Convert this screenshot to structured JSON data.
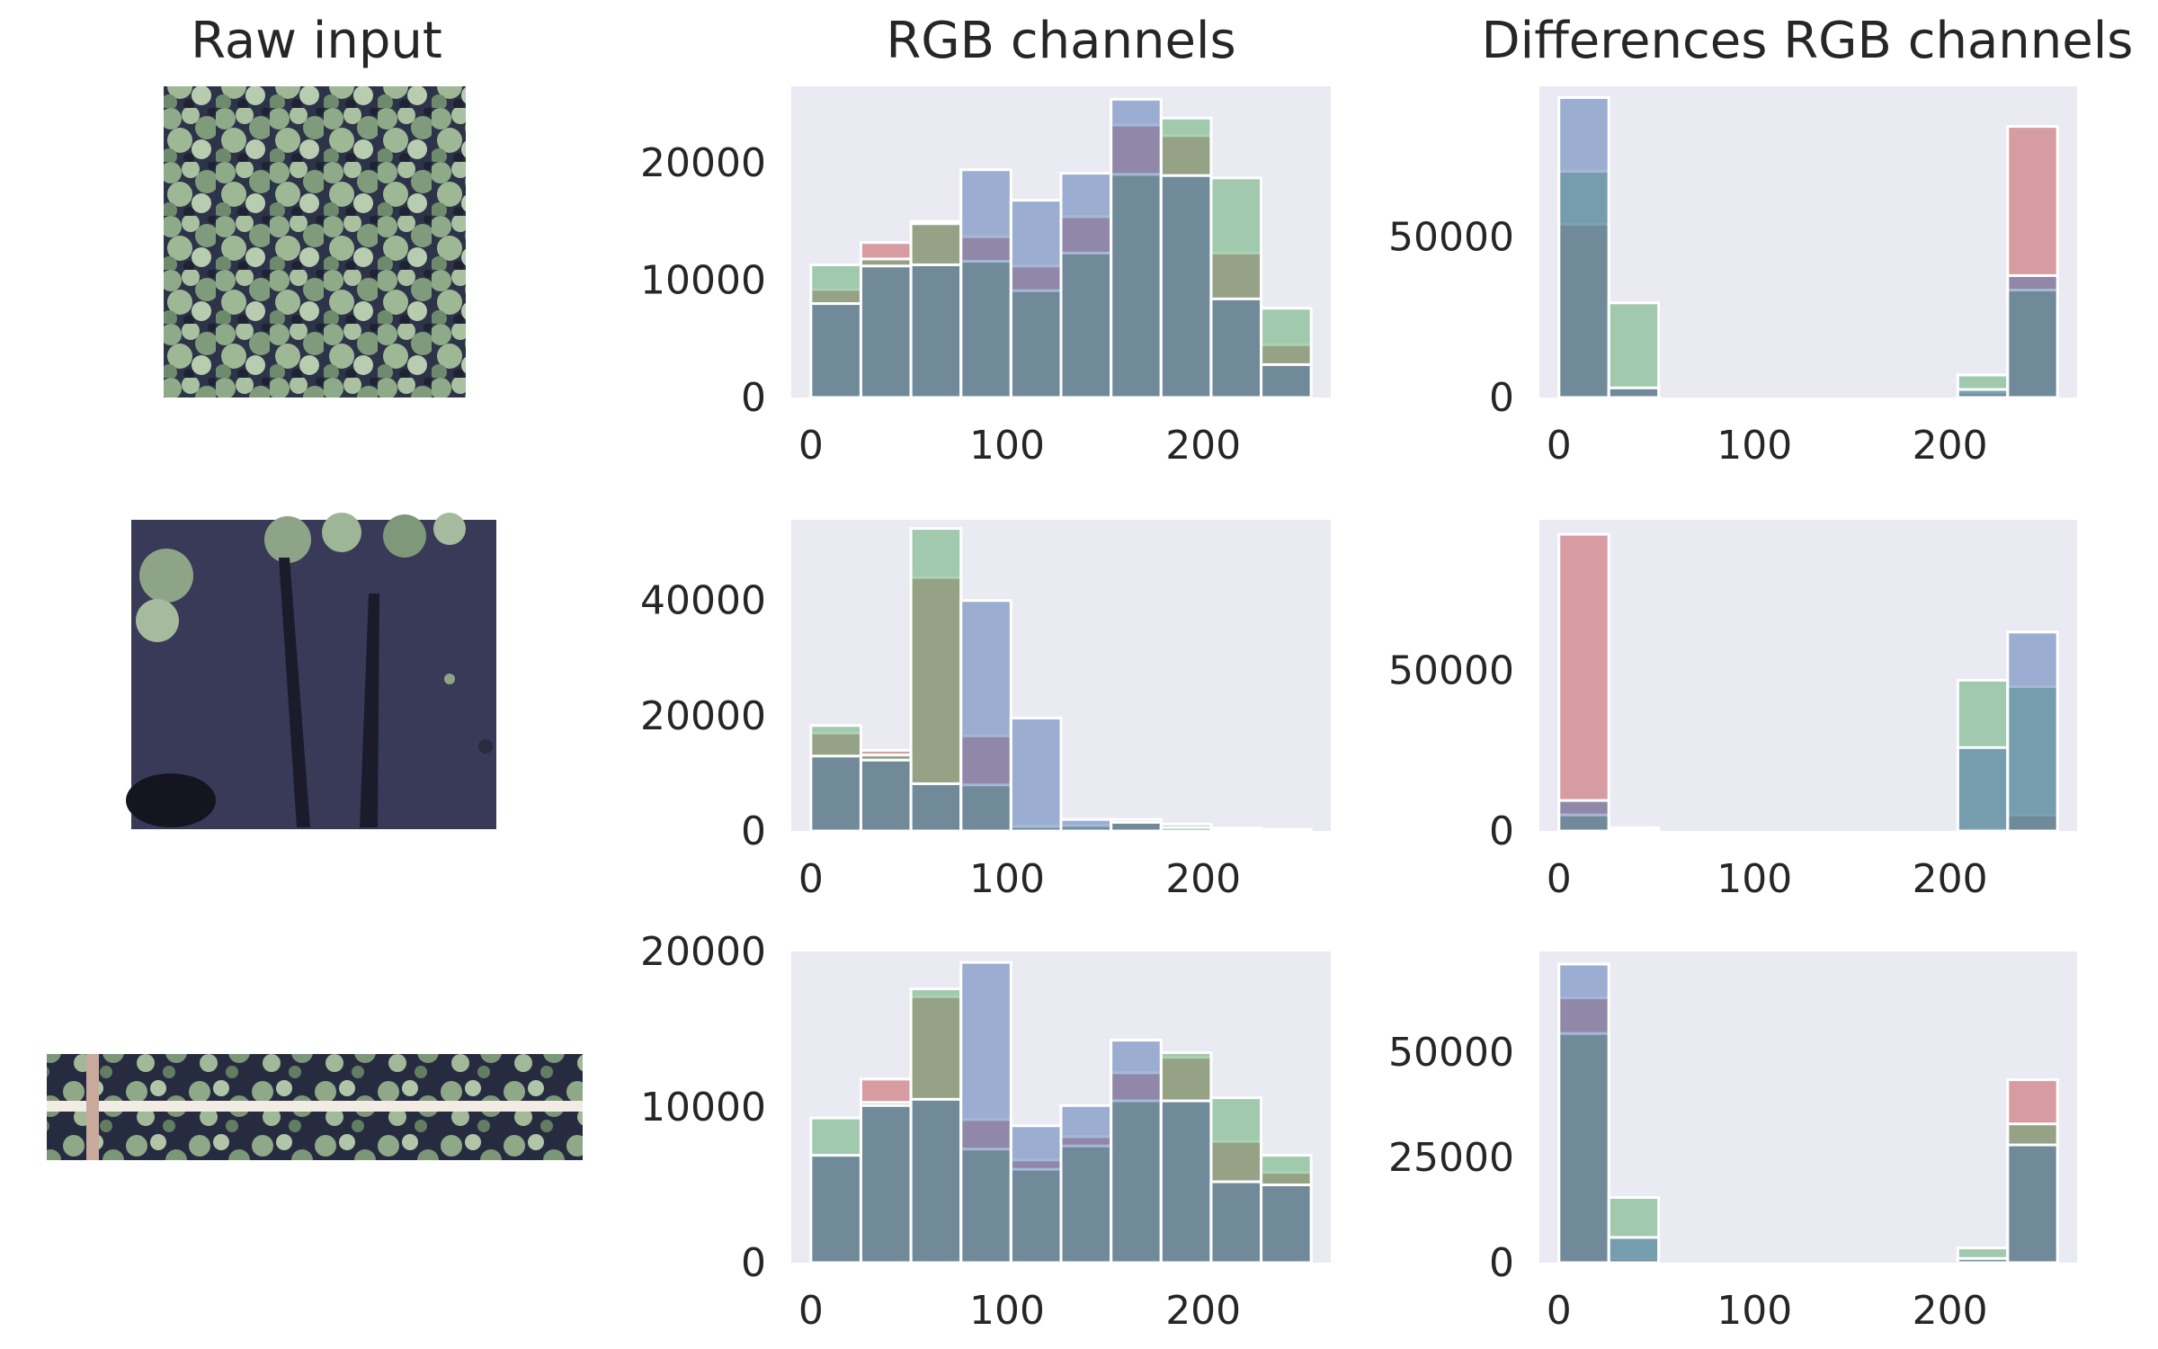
{
  "column_titles": {
    "raw": "Raw input",
    "rgb": "RGB channels",
    "diff": "Differences RGB channels"
  },
  "colors": {
    "red": "#c44e52",
    "green": "#55a868",
    "blue": "#4c72b0",
    "axes_bg": "#eaeaf2"
  },
  "images": [
    {
      "name": "raw-input-image-1",
      "scene": "dense-foliage"
    },
    {
      "name": "raw-input-image-2",
      "scene": "dark-water"
    },
    {
      "name": "raw-input-image-3",
      "scene": "foliage-strip-with-stick"
    }
  ],
  "chart_data": [
    {
      "type": "bar",
      "panel": "rgb-row1",
      "title": "RGB channels",
      "bin_edges": [
        0,
        25.5,
        51,
        76.5,
        102,
        127.5,
        153,
        178.5,
        204,
        229.5,
        255
      ],
      "xlim": [
        -10,
        265
      ],
      "ylim": [
        0,
        26500
      ],
      "xticks": [
        0,
        100,
        200
      ],
      "xtick_labels": [
        "0",
        "100",
        "200"
      ],
      "yticks": [
        0,
        10000,
        20000
      ],
      "ytick_labels": [
        "0",
        "10000",
        "20000"
      ],
      "series": [
        {
          "name": "R",
          "values": [
            9200,
            13200,
            15000,
            13700,
            11200,
            15400,
            23200,
            22300,
            12300,
            4500
          ]
        },
        {
          "name": "G",
          "values": [
            11300,
            11800,
            14800,
            11600,
            9100,
            12300,
            19000,
            23800,
            18700,
            7600
          ]
        },
        {
          "name": "B",
          "values": [
            8000,
            11200,
            11300,
            19400,
            16800,
            19100,
            25400,
            18900,
            8400,
            2800
          ]
        }
      ]
    },
    {
      "type": "bar",
      "panel": "diff-row1",
      "title": "Differences RGB channels",
      "bin_edges": [
        0,
        25.5,
        51,
        76.5,
        102,
        127.5,
        153,
        178.5,
        204,
        229.5,
        255
      ],
      "xlim": [
        -10,
        265
      ],
      "ylim": [
        0,
        97000
      ],
      "xticks": [
        0,
        100,
        200
      ],
      "xtick_labels": [
        "0",
        "100",
        "200"
      ],
      "yticks": [
        0,
        50000
      ],
      "ytick_labels": [
        "0",
        "50000"
      ],
      "series": [
        {
          "name": "R",
          "values": [
            54000,
            3000,
            0,
            0,
            0,
            0,
            0,
            0,
            1500,
            84500
          ]
        },
        {
          "name": "G",
          "values": [
            70500,
            29500,
            0,
            0,
            0,
            0,
            0,
            0,
            7000,
            33500
          ]
        },
        {
          "name": "B",
          "values": [
            93500,
            3000,
            0,
            0,
            0,
            0,
            0,
            0,
            2500,
            38000
          ]
        }
      ]
    },
    {
      "type": "bar",
      "panel": "rgb-row2",
      "title": "RGB channels",
      "bin_edges": [
        0,
        25.5,
        51,
        76.5,
        102,
        127.5,
        153,
        178.5,
        204,
        229.5,
        255
      ],
      "xlim": [
        -10,
        265
      ],
      "ylim": [
        0,
        54000
      ],
      "xticks": [
        0,
        100,
        200
      ],
      "xtick_labels": [
        "0",
        "100",
        "200"
      ],
      "yticks": [
        0,
        20000,
        40000
      ],
      "ytick_labels": [
        "0",
        "20000",
        "40000"
      ],
      "series": [
        {
          "name": "R",
          "values": [
            17000,
            14000,
            44000,
            16500,
            700,
            800,
            1800,
            200,
            0,
            0
          ]
        },
        {
          "name": "G",
          "values": [
            18300,
            13200,
            52500,
            8000,
            800,
            1000,
            2000,
            1200,
            500,
            300
          ]
        },
        {
          "name": "B",
          "values": [
            13000,
            12300,
            8200,
            40000,
            19600,
            2000,
            1500,
            600,
            200,
            100
          ]
        }
      ]
    },
    {
      "type": "bar",
      "panel": "diff-row2",
      "title": "Differences RGB channels",
      "bin_edges": [
        0,
        25.5,
        51,
        76.5,
        102,
        127.5,
        153,
        178.5,
        204,
        229.5,
        255
      ],
      "xlim": [
        -10,
        265
      ],
      "ylim": [
        0,
        97000
      ],
      "xticks": [
        0,
        100,
        200
      ],
      "xtick_labels": [
        "0",
        "100",
        "200"
      ],
      "yticks": [
        0,
        50000
      ],
      "ytick_labels": [
        "0",
        "50000"
      ],
      "series": [
        {
          "name": "R",
          "values": [
            92500,
            500,
            0,
            0,
            0,
            0,
            0,
            0,
            700,
            5000
          ]
        },
        {
          "name": "G",
          "values": [
            5000,
            1000,
            0,
            0,
            0,
            0,
            0,
            0,
            47000,
            45000
          ]
        },
        {
          "name": "B",
          "values": [
            9500,
            500,
            0,
            0,
            0,
            0,
            0,
            0,
            26000,
            62000
          ]
        }
      ]
    },
    {
      "type": "bar",
      "panel": "rgb-row3",
      "title": "RGB channels",
      "bin_edges": [
        0,
        25.5,
        51,
        76.5,
        102,
        127.5,
        153,
        178.5,
        204,
        229.5,
        255
      ],
      "xlim": [
        -10,
        265
      ],
      "ylim": [
        0,
        20000
      ],
      "xticks": [
        0,
        100,
        200
      ],
      "xtick_labels": [
        "0",
        "100",
        "200"
      ],
      "yticks": [
        0,
        10000,
        20000
      ],
      "ytick_labels": [
        "0",
        "10000",
        "20000"
      ],
      "series": [
        {
          "name": "R",
          "values": [
            6900,
            11800,
            17100,
            9200,
            6600,
            8100,
            12200,
            13200,
            7800,
            5800
          ]
        },
        {
          "name": "G",
          "values": [
            9300,
            10300,
            17600,
            7300,
            6000,
            7500,
            10400,
            13500,
            10600,
            6900
          ]
        },
        {
          "name": "B",
          "values": [
            6900,
            10100,
            10500,
            19300,
            8800,
            10100,
            14300,
            10400,
            5200,
            5000
          ]
        }
      ]
    },
    {
      "type": "bar",
      "panel": "diff-row3",
      "title": "Differences RGB channels",
      "bin_edges": [
        0,
        25.5,
        51,
        76.5,
        102,
        127.5,
        153,
        178.5,
        204,
        229.5,
        255
      ],
      "xlim": [
        -10,
        265
      ],
      "ylim": [
        0,
        74000
      ],
      "xticks": [
        0,
        100,
        200
      ],
      "xtick_labels": [
        "0",
        "100",
        "200"
      ],
      "yticks": [
        0,
        25000,
        50000
      ],
      "ytick_labels": [
        "0",
        "25000",
        "50000"
      ],
      "series": [
        {
          "name": "R",
          "values": [
            63000,
            1000,
            0,
            0,
            0,
            0,
            0,
            0,
            800,
            43500
          ]
        },
        {
          "name": "G",
          "values": [
            54500,
            15500,
            0,
            0,
            0,
            0,
            0,
            0,
            3500,
            33000
          ]
        },
        {
          "name": "B",
          "values": [
            71000,
            6000,
            0,
            0,
            0,
            0,
            0,
            0,
            1000,
            28000
          ]
        }
      ]
    }
  ]
}
